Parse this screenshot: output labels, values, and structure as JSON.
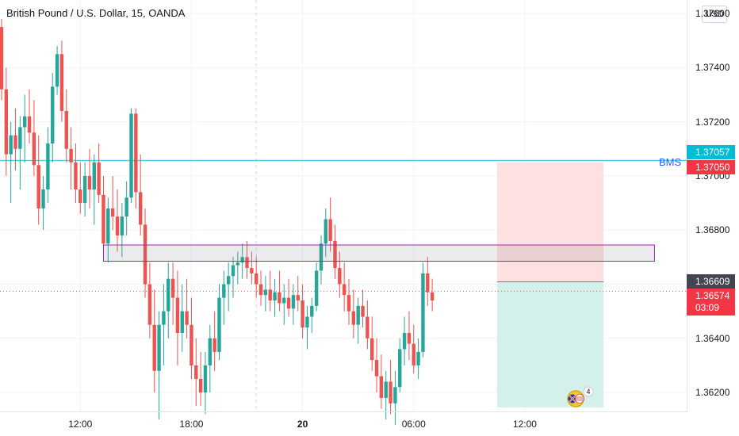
{
  "header": {
    "title": "British Pound / U.S. Dollar, 15, OANDA",
    "currency_button": "USD"
  },
  "annotations": {
    "bms_label": "BMS",
    "flag_badge": "4"
  },
  "price_tags": {
    "level_cyan": "1.37057",
    "stop_red": "1.37050",
    "entry_dark": "1.36609",
    "last_price": "1.36574",
    "countdown": "03:09"
  },
  "colors": {
    "up": "#26a69a",
    "down": "#ef5350",
    "bms_line": "#4dd0e1",
    "zone_border": "#9c27b0",
    "stop_zone": "#fde0e0",
    "target_zone": "#d4f0ea",
    "entry_tag": "#434651",
    "cyan_tag": "#00bcd4",
    "red_tag": "#f23645"
  },
  "chart_data": {
    "type": "candlestick",
    "title": "British Pound / U.S. Dollar, 15, OANDA",
    "y_ticks": [
      "1.37600",
      "1.37400",
      "1.37200",
      "1.37000",
      "1.36800",
      "1.36600",
      "1.36400",
      "1.36200"
    ],
    "ylim": [
      1.3613,
      1.3765
    ],
    "x_ticks": [
      {
        "label": "12:00",
        "bar": 17,
        "bold": false
      },
      {
        "label": "18:00",
        "bar": 41,
        "bold": false
      },
      {
        "label": "20",
        "bar": 65,
        "bold": true
      },
      {
        "label": "06:00",
        "bar": 89,
        "bold": false
      },
      {
        "label": "12:00",
        "bar": 113,
        "bold": false
      }
    ],
    "levels": {
      "bms": 1.37057,
      "stop": 1.3705,
      "entry": 1.36609,
      "last": 1.36574
    },
    "supply_zone": {
      "top": 1.36745,
      "bottom": 1.36685,
      "start_bar": 22,
      "end_bar": 141
    },
    "position": {
      "start_bar": 107,
      "end_bar": 130,
      "stop": 1.3705,
      "entry": 1.36609,
      "target": 1.36145
    },
    "session_divider_bar": 55,
    "candles": [
      [
        1.3755,
        1.3758,
        1.3728,
        1.3732
      ],
      [
        1.3732,
        1.374,
        1.37,
        1.3708
      ],
      [
        1.3708,
        1.372,
        1.369,
        1.3715
      ],
      [
        1.3715,
        1.3725,
        1.3702,
        1.371
      ],
      [
        1.371,
        1.3722,
        1.3695,
        1.3718
      ],
      [
        1.3718,
        1.373,
        1.3705,
        1.3722
      ],
      [
        1.3722,
        1.3732,
        1.3712,
        1.3716
      ],
      [
        1.3716,
        1.3728,
        1.37,
        1.3704
      ],
      [
        1.3704,
        1.3715,
        1.3682,
        1.3688
      ],
      [
        1.3688,
        1.37,
        1.368,
        1.3695
      ],
      [
        1.3695,
        1.3718,
        1.369,
        1.3712
      ],
      [
        1.3712,
        1.3738,
        1.3705,
        1.3733
      ],
      [
        1.3733,
        1.3748,
        1.373,
        1.3745
      ],
      [
        1.3745,
        1.375,
        1.372,
        1.3724
      ],
      [
        1.3724,
        1.3732,
        1.3705,
        1.371
      ],
      [
        1.371,
        1.3718,
        1.3695,
        1.3705
      ],
      [
        1.3705,
        1.3712,
        1.369,
        1.3695
      ],
      [
        1.3695,
        1.3705,
        1.3686,
        1.369
      ],
      [
        1.369,
        1.3705,
        1.3685,
        1.37
      ],
      [
        1.37,
        1.371,
        1.3688,
        1.3695
      ],
      [
        1.3695,
        1.3708,
        1.3682,
        1.3705
      ],
      [
        1.3705,
        1.3712,
        1.369,
        1.3693
      ],
      [
        1.3693,
        1.37,
        1.367,
        1.3675
      ],
      [
        1.3675,
        1.3692,
        1.3668,
        1.3688
      ],
      [
        1.3688,
        1.37,
        1.368,
        1.3685
      ],
      [
        1.3685,
        1.3695,
        1.3672,
        1.3678
      ],
      [
        1.3678,
        1.369,
        1.367,
        1.3685
      ],
      [
        1.3685,
        1.3698,
        1.3678,
        1.3692
      ],
      [
        1.3692,
        1.3725,
        1.369,
        1.3723
      ],
      [
        1.3723,
        1.3725,
        1.3688,
        1.3694
      ],
      [
        1.3694,
        1.3708,
        1.3678,
        1.3682
      ],
      [
        1.3682,
        1.3688,
        1.3655,
        1.366
      ],
      [
        1.366,
        1.3668,
        1.364,
        1.3645
      ],
      [
        1.3645,
        1.3658,
        1.362,
        1.3628
      ],
      [
        1.3628,
        1.365,
        1.361,
        1.3645
      ],
      [
        1.3645,
        1.366,
        1.363,
        1.365
      ],
      [
        1.365,
        1.3668,
        1.364,
        1.3662
      ],
      [
        1.3662,
        1.3668,
        1.3645,
        1.3655
      ],
      [
        1.3655,
        1.3665,
        1.363,
        1.3642
      ],
      [
        1.3642,
        1.366,
        1.3635,
        1.365
      ],
      [
        1.365,
        1.3662,
        1.364,
        1.3645
      ],
      [
        1.3645,
        1.3655,
        1.3625,
        1.363
      ],
      [
        1.363,
        1.364,
        1.3615,
        1.3625
      ],
      [
        1.3625,
        1.3635,
        1.3615,
        1.362
      ],
      [
        1.362,
        1.3635,
        1.3612,
        1.363
      ],
      [
        1.363,
        1.3645,
        1.362,
        1.364
      ],
      [
        1.364,
        1.365,
        1.3628,
        1.3635
      ],
      [
        1.3635,
        1.366,
        1.3632,
        1.3655
      ],
      [
        1.3655,
        1.3665,
        1.3645,
        1.366
      ],
      [
        1.366,
        1.3668,
        1.365,
        1.3663
      ],
      [
        1.3663,
        1.367,
        1.3655,
        1.3667
      ],
      [
        1.3667,
        1.3672,
        1.366,
        1.3668
      ],
      [
        1.3668,
        1.3675,
        1.3662,
        1.367
      ],
      [
        1.367,
        1.3676,
        1.3662,
        1.3666
      ],
      [
        1.3666,
        1.3672,
        1.366,
        1.3664
      ],
      [
        1.3664,
        1.367,
        1.3655,
        1.366
      ],
      [
        1.366,
        1.3665,
        1.3652,
        1.3656
      ],
      [
        1.3656,
        1.3663,
        1.365,
        1.3658
      ],
      [
        1.3658,
        1.3665,
        1.365,
        1.3654
      ],
      [
        1.3654,
        1.3662,
        1.3648,
        1.3657
      ],
      [
        1.3657,
        1.3665,
        1.365,
        1.3653
      ],
      [
        1.3653,
        1.366,
        1.3645,
        1.3655
      ],
      [
        1.3655,
        1.3662,
        1.3648,
        1.3651
      ],
      [
        1.3651,
        1.366,
        1.3645,
        1.3656
      ],
      [
        1.3656,
        1.3663,
        1.365,
        1.3654
      ],
      [
        1.3654,
        1.366,
        1.364,
        1.3644
      ],
      [
        1.3644,
        1.3652,
        1.3636,
        1.3648
      ],
      [
        1.3648,
        1.3655,
        1.3642,
        1.3652
      ],
      [
        1.3652,
        1.3668,
        1.365,
        1.3665
      ],
      [
        1.3665,
        1.3678,
        1.366,
        1.3675
      ],
      [
        1.3675,
        1.3688,
        1.367,
        1.3684
      ],
      [
        1.3684,
        1.3692,
        1.3672,
        1.3676
      ],
      [
        1.3676,
        1.3682,
        1.3662,
        1.3666
      ],
      [
        1.3666,
        1.3672,
        1.3655,
        1.366
      ],
      [
        1.366,
        1.3668,
        1.365,
        1.3656
      ],
      [
        1.3656,
        1.3662,
        1.3645,
        1.365
      ],
      [
        1.365,
        1.3658,
        1.364,
        1.3645
      ],
      [
        1.3645,
        1.3655,
        1.3638,
        1.3652
      ],
      [
        1.3652,
        1.3658,
        1.3644,
        1.3648
      ],
      [
        1.3648,
        1.3654,
        1.3636,
        1.364
      ],
      [
        1.364,
        1.3648,
        1.3628,
        1.3632
      ],
      [
        1.3632,
        1.364,
        1.362,
        1.3626
      ],
      [
        1.3626,
        1.3634,
        1.3614,
        1.3618
      ],
      [
        1.3618,
        1.3628,
        1.361,
        1.3624
      ],
      [
        1.3624,
        1.3632,
        1.3612,
        1.3616
      ],
      [
        1.3616,
        1.3628,
        1.3608,
        1.3622
      ],
      [
        1.3622,
        1.364,
        1.362,
        1.3636
      ],
      [
        1.3636,
        1.3648,
        1.363,
        1.3642
      ],
      [
        1.3642,
        1.365,
        1.3632,
        1.3638
      ],
      [
        1.3638,
        1.3645,
        1.3627,
        1.363
      ],
      [
        1.363,
        1.364,
        1.3625,
        1.3635
      ],
      [
        1.3635,
        1.3668,
        1.3633,
        1.3664
      ],
      [
        1.3664,
        1.367,
        1.3652,
        1.3657
      ],
      [
        1.3657,
        1.3662,
        1.365,
        1.3654
      ]
    ]
  }
}
